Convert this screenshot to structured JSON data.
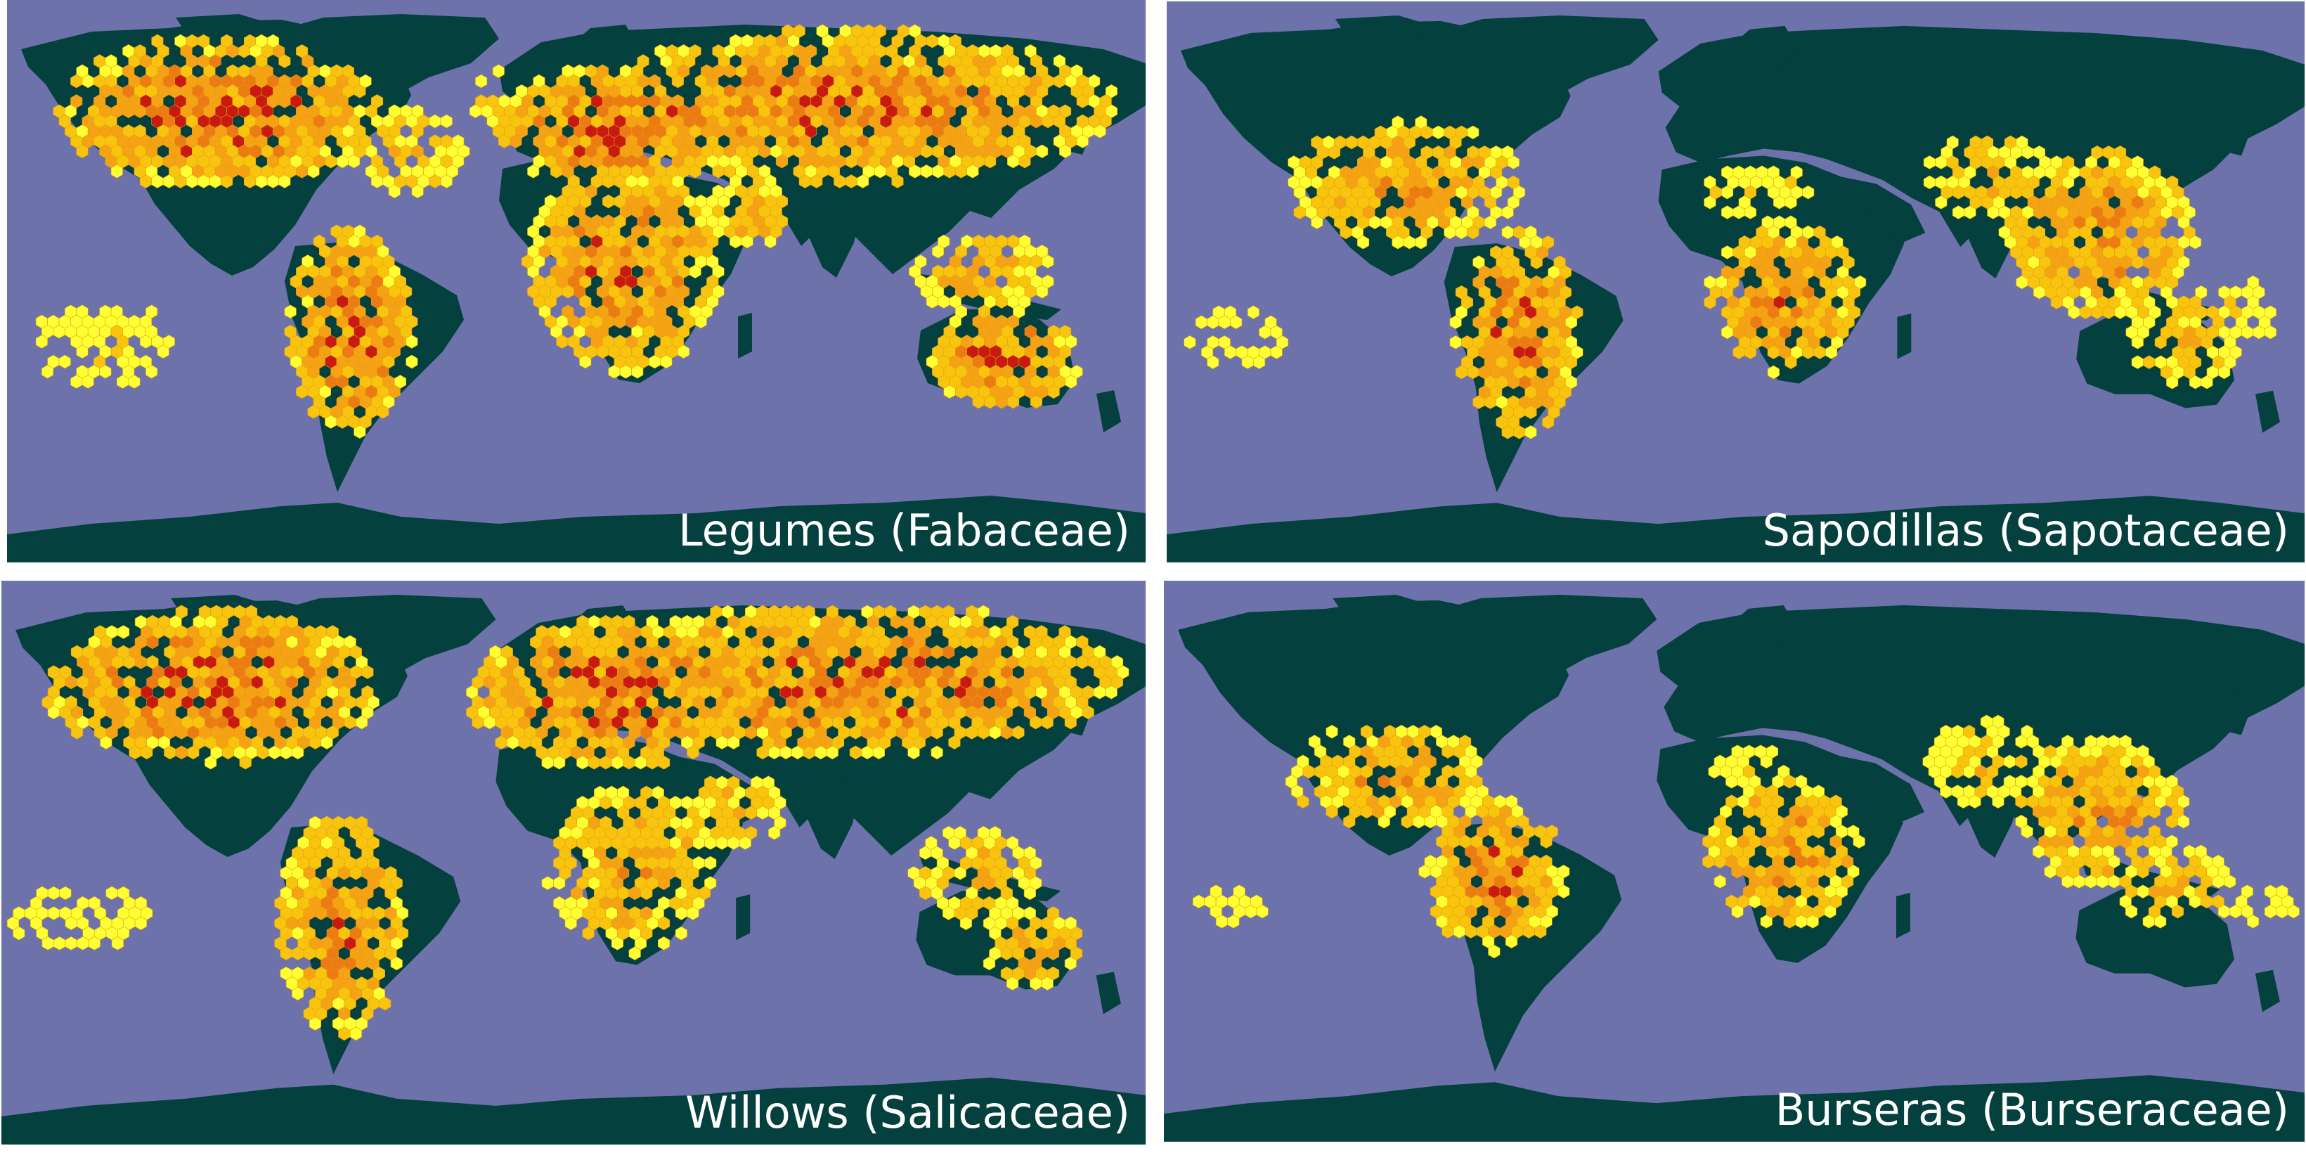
{
  "map_colors": {
    "ocean": "#6e72ab",
    "land": "#04403d",
    "richness_low": "#ffff33",
    "richness_mid_low": "#f9c40e",
    "richness_mid": "#f5a214",
    "richness_mid_high": "#ec7b13",
    "richness_high": "#c91a10"
  },
  "panels": [
    {
      "label": "Legumes (Fabaceae)",
      "family": "Fabaceae",
      "distribution": "global"
    },
    {
      "label": "Sapodillas (Sapotaceae)",
      "family": "Sapotaceae",
      "distribution": "tropical"
    },
    {
      "label": "Willows (Salicaceae)",
      "family": "Salicaceae",
      "distribution": "temperate"
    },
    {
      "label": "Burseras (Burseraceae)",
      "family": "Burseraceae",
      "distribution": "tropical-narrow"
    }
  ]
}
